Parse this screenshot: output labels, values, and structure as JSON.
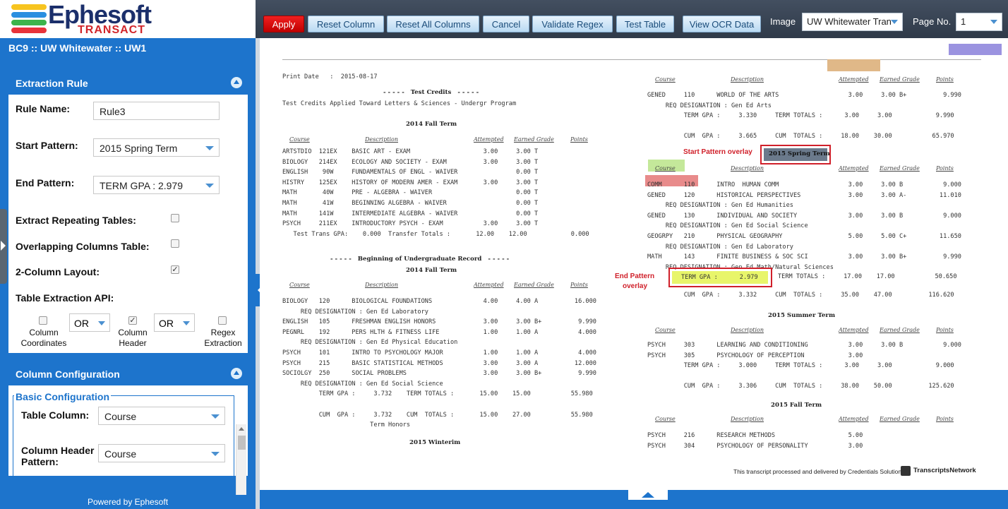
{
  "app": {
    "brand": "Ephesoft",
    "sub_brand": "TRANSACT",
    "breadcrumb": "BC9 :: UW Whitewater :: UW1",
    "footer": "Powered by Ephesoft"
  },
  "toolbar": {
    "apply": "Apply",
    "reset_column": "Reset Column",
    "reset_all": "Reset All Columns",
    "cancel": "Cancel",
    "validate_regex": "Validate Regex",
    "test_table": "Test Table",
    "view_ocr": "View OCR Data",
    "image_label": "Image",
    "image_value": "UW Whitewater Tran",
    "page_label": "Page No.",
    "page_value": "1"
  },
  "extraction_rule": {
    "title": "Extraction Rule",
    "rule_name_label": "Rule Name:",
    "rule_name_value": "Rule3",
    "start_pattern_label": "Start Pattern:",
    "start_pattern_value": "2015 Spring Term",
    "end_pattern_label": "End Pattern:",
    "end_pattern_value": "TERM GPA : 2.979",
    "extract_repeating_label": "Extract Repeating Tables:",
    "extract_repeating_checked": false,
    "overlapping_label": "Overlapping Columns Table:",
    "overlapping_checked": false,
    "two_column_label": "2-Column Layout:",
    "two_column_checked": true,
    "api_label": "Table Extraction API:",
    "api": {
      "column_coordinates": "Column Coordinates",
      "column_coordinates_checked": false,
      "op1": "OR",
      "column_header": "Column Header",
      "column_header_checked": true,
      "op2": "OR",
      "regex_extraction": "Regex Extraction",
      "regex_extraction_checked": false
    }
  },
  "column_configuration": {
    "title": "Column Configuration",
    "basic_title": "Basic Configuration",
    "table_column_label": "Table Column:",
    "table_column_value": "Course",
    "header_pattern_label": "Column Header Pattern:",
    "header_pattern_value": "Course"
  },
  "document": {
    "print_date": "Print Date   :  2015-08-17",
    "test_credits": "- - - - -   Test Credits   - - - - -",
    "test_credits_sub": "Test Credits Applied Toward Letters & Sciences - Undergr Program",
    "fall_2014": "2014 Fall Term",
    "headers": [
      "Course",
      "Description",
      "Attempted",
      "Earned Grade",
      "Points"
    ],
    "left_rows_1": [
      "ARTSTDIO  121EX    BASIC ART - EXAM                    3.00     3.00 T",
      "BIOLOGY   214EX    ECOLOGY AND SOCIETY - EXAM          3.00     3.00 T",
      "ENGLISH    90W     FUNDAMENTALS OF ENGL - WAIVER                0.00 T",
      "HISTRY    125EX    HISTORY OF MODERN AMER - EXAM       3.00     3.00 T",
      "MATH       40W     PRE - ALGEBRA - WAIVER                       0.00 T",
      "MATH       41W     BEGINNING ALGEBRA - WAIVER                   0.00 T",
      "MATH      141W     INTERMEDIATE ALGEBRA - WAIVER                0.00 T",
      "PSYCH     211EX    INTRODUCTORY PSYCH - EXAM           3.00     3.00 T",
      "   Test Trans GPA:    0.000  Transfer Totals :       12.00    12.00            0.000"
    ],
    "beginning": "- - - - -   Beginning of Undergraduate Record   - - - - -",
    "fall_2014b": "2014 Fall Term",
    "left_rows_2": [
      "BIOLOGY   120      BIOLOGICAL FOUNDATIONS              4.00     4.00 A          16.000",
      "     REQ DESIGNATION : Gen Ed Laboratory",
      "ENGLISH   105      FRESHMAN ENGLISH HONORS             3.00     3.00 B+          9.990",
      "PEGNRL    192      PERS HLTH & FITNESS LIFE            1.00     1.00 A           4.000",
      "     REQ DESIGNATION : Gen Ed Physical Education",
      "PSYCH     101      INTRO TO PSYCHOLOGY MAJOR           1.00     1.00 A           4.000",
      "PSYCH     215      BASIC STATISTICAL METHODS           3.00     3.00 A          12.000",
      "SOCIOLGY  250      SOCIAL PROBLEMS                     3.00     3.00 B+          9.990",
      "     REQ DESIGNATION : Gen Ed Social Science",
      "          TERM GPA :     3.732    TERM TOTALS :       15.00    15.00           55.980",
      "",
      "          CUM  GPA :     3.732    CUM  TOTALS :       15.00    27.00           55.980",
      "                        Term Honors"
    ],
    "winterim": "2015 Winterim",
    "right_rows_1": [
      "GENED     110      WORLD OF THE ARTS                   3.00     3.00 B+          9.990",
      "     REQ DESIGNATION : Gen Ed Arts",
      "          TERM GPA :     3.330     TERM TOTALS :      3.00     3.00            9.990",
      "",
      "          CUM  GPA :     3.665     CUM  TOTALS :     18.00    30.00           65.970"
    ],
    "start_overlay_label": "Start Pattern overlay",
    "start_overlay_text": "2015 Spring Term",
    "right_rows_2": [
      "COMM      110      INTRO  HUMAN COMM                   3.00     3.00 B           9.000",
      "GENED     120      HISTORICAL PERSPECTIVES             3.00     3.00 A-         11.010",
      "     REQ DESIGNATION : Gen Ed Humanities",
      "GENED     130      INDIVIDUAL AND SOCIETY              3.00     3.00 B           9.000",
      "     REQ DESIGNATION : Gen Ed Social Science",
      "GEOGRPY   210      PHYSICAL GEOGRAPHY                  5.00     5.00 C+         11.650",
      "     REQ DESIGNATION : Gen Ed Laboratory",
      "MATH      143      FINITE BUSINESS & SOC SCI           3.00     3.00 B+          9.990",
      "     REQ DESIGNATION : Gen Ed Math/Natural Sciences"
    ],
    "end_overlay_label_1": "End Pattern",
    "end_overlay_label_2": "overlay",
    "end_overlay_text": "TERM GPA :      2.979",
    "end_row_rest": "TERM TOTALS :     17.00    17.00           50.650",
    "cum_row_2": "          CUM  GPA :     3.332     CUM  TOTALS :     35.00    47.00          116.620",
    "summer_2015": "2015 Summer Term",
    "right_rows_3": [
      "PSYCH     303      LEARNING AND CONDITIONING           3.00     3.00 B           9.000",
      "PSYCH     305      PSYCHOLOGY OF PERCEPTION            3.00",
      "          TERM GPA :     3.000     TERM TOTALS :      3.00     3.00            9.000",
      "",
      "          CUM  GPA :     3.306     CUM  TOTALS :     38.00    50.00          125.620"
    ],
    "fall_2015": "2015 Fall Term",
    "right_rows_4": [
      "PSYCH     216      RESEARCH METHODS                    5.00",
      "PSYCH     304      PSYCHOLOGY OF PERSONALITY           3.00"
    ],
    "footer_note": "This transcript processed and delivered by Credentials Solutions",
    "footer_brand": "TranscriptsNetwork"
  },
  "colors": {
    "accent": "#1d74cc",
    "apply": "#e00000",
    "overlay_red": "#d0202a",
    "start_box": "#6b7a8c",
    "end_box": "#e8f56a"
  }
}
